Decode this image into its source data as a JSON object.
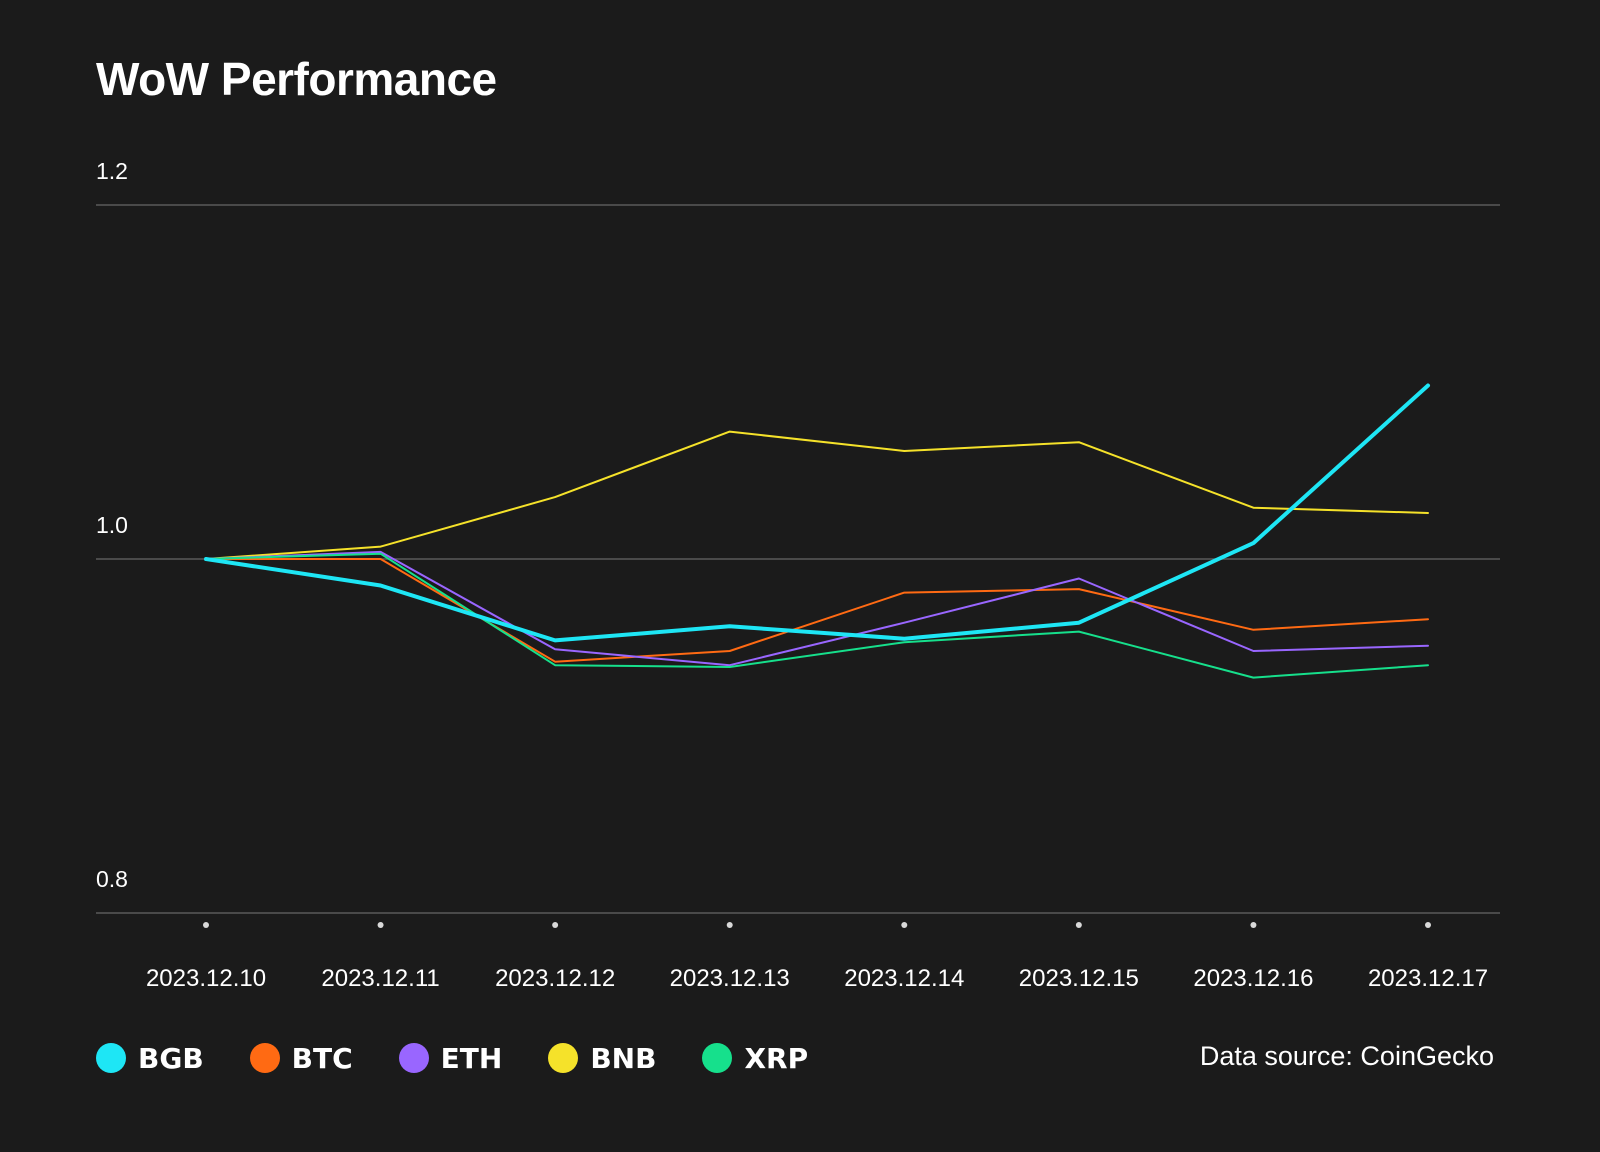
{
  "chart_data": {
    "type": "line",
    "title": "WoW Performance",
    "xlabel": "",
    "ylabel": "",
    "ylim": [
      0.8,
      1.2
    ],
    "yticks": [
      "1.2",
      "1.0",
      "0.8"
    ],
    "categories": [
      "2023.12.10",
      "2023.12.11",
      "2023.12.12",
      "2023.12.13",
      "2023.12.14",
      "2023.12.15",
      "2023.12.16",
      "2023.12.17"
    ],
    "series": [
      {
        "name": "BNB",
        "color": "#f5e22a",
        "values": [
          1.0,
          1.007,
          1.035,
          1.072,
          1.061,
          1.066,
          1.029,
          1.026
        ]
      },
      {
        "name": "BTC",
        "color": "#ff6a13",
        "values": [
          1.0,
          1.0,
          0.942,
          0.948,
          0.981,
          0.983,
          0.96,
          0.966
        ]
      },
      {
        "name": "ETH",
        "color": "#9966ff",
        "values": [
          1.0,
          1.004,
          0.949,
          0.94,
          0.964,
          0.989,
          0.948,
          0.951
        ]
      },
      {
        "name": "XRP",
        "color": "#16e08c",
        "values": [
          1.0,
          1.003,
          0.94,
          0.939,
          0.953,
          0.959,
          0.933,
          0.94
        ]
      },
      {
        "name": "BGB",
        "color": "#1ee6f5",
        "values": [
          1.0,
          0.985,
          0.954,
          0.962,
          0.955,
          0.964,
          1.009,
          1.098
        ]
      }
    ],
    "legend_order": [
      "BGB",
      "BTC",
      "ETH",
      "BNB",
      "XRP"
    ],
    "grid": true
  },
  "legend": [
    {
      "name": "BGB",
      "color": "#1ee6f5"
    },
    {
      "name": "BTC",
      "color": "#ff6a13"
    },
    {
      "name": "ETH",
      "color": "#9966ff"
    },
    {
      "name": "BNB",
      "color": "#f5e22a"
    },
    {
      "name": "XRP",
      "color": "#16e08c"
    }
  ],
  "source": "Data source: CoinGecko"
}
